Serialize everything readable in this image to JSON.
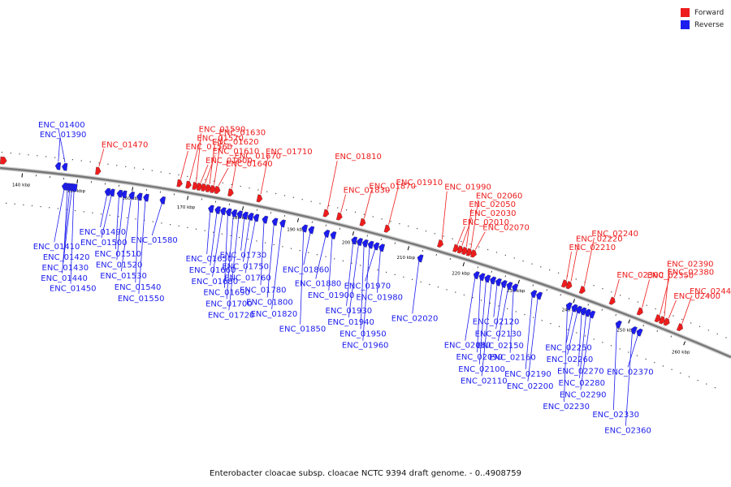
{
  "colors": {
    "forward": "#ee1c1c",
    "reverse": "#1c1cee",
    "backbone": "#777777",
    "tick": "#000000"
  },
  "legend": [
    {
      "name": "Forward",
      "color": "#ee1c1c"
    },
    {
      "name": "Reverse",
      "color": "#1c1cee"
    }
  ],
  "caption": "Enterobacter cloacae subsp. cloacae NCTC 9394 draft genome. - 0..4908759",
  "scale": {
    "unit": "kbp",
    "ticks": [
      {
        "kbp": 140,
        "label": "140 kbp"
      },
      {
        "kbp": 150,
        "label": "150 kbp"
      },
      {
        "kbp": 160,
        "label": "160 kbp"
      },
      {
        "kbp": 170,
        "label": "170 kbp"
      },
      {
        "kbp": 180,
        "label": "180 kbp"
      },
      {
        "kbp": 190,
        "label": "190 kbp"
      },
      {
        "kbp": 200,
        "label": "200 kbp"
      },
      {
        "kbp": 210,
        "label": "210 kbp"
      },
      {
        "kbp": 220,
        "label": "220 kbp"
      },
      {
        "kbp": 230,
        "label": "230 kbp"
      },
      {
        "kbp": 240,
        "label": "240 kbp"
      },
      {
        "kbp": 250,
        "label": "250 kbp"
      },
      {
        "kbp": 260,
        "label": "260 kbp"
      }
    ]
  },
  "forward_genes": [
    {
      "label": "ENC_01470",
      "kbp": 153.5
    },
    {
      "label": "ENC_01560",
      "kbp": 168.2
    },
    {
      "label": "ENC_01570",
      "kbp": 169.8
    },
    {
      "label": "ENC_01590",
      "kbp": 171.0
    },
    {
      "label": "ENC_01600",
      "kbp": 171.8
    },
    {
      "label": "ENC_01610",
      "kbp": 172.6
    },
    {
      "label": "ENC_01620",
      "kbp": 173.4
    },
    {
      "label": "ENC_01630",
      "kbp": 174.2
    },
    {
      "label": "ENC_01640",
      "kbp": 175.0
    },
    {
      "label": "ENC_01670",
      "kbp": 177.4
    },
    {
      "label": "ENC_01710",
      "kbp": 182.6
    },
    {
      "label": "ENC_01810",
      "kbp": 194.6
    },
    {
      "label": "ENC_01830",
      "kbp": 197.0
    },
    {
      "label": "ENC_01870",
      "kbp": 201.2
    },
    {
      "label": "ENC_01910",
      "kbp": 205.6
    },
    {
      "label": "ENC_01990",
      "kbp": 215.2
    },
    {
      "label": "ENC_02010",
      "kbp": 218.0
    },
    {
      "label": "ENC_02030",
      "kbp": 218.8
    },
    {
      "label": "ENC_02050",
      "kbp": 219.6
    },
    {
      "label": "ENC_02060",
      "kbp": 220.4
    },
    {
      "label": "ENC_02070",
      "kbp": 221.2
    },
    {
      "label": "ENC_02210",
      "kbp": 237.6
    },
    {
      "label": "ENC_02220",
      "kbp": 238.4
    },
    {
      "label": "ENC_02240",
      "kbp": 240.8
    },
    {
      "label": "ENC_02300",
      "kbp": 246.2
    },
    {
      "label": "ENC_02350",
      "kbp": 251.2
    },
    {
      "label": "ENC_02380",
      "kbp": 254.4
    },
    {
      "label": "ENC_02390",
      "kbp": 255.2
    },
    {
      "label": "ENC_02400",
      "kbp": 256.0
    },
    {
      "label": "ENC_02440",
      "kbp": 258.4
    }
  ],
  "reverse_genes": [
    {
      "label": "ENC_01390",
      "kbp": 146.2
    },
    {
      "label": "ENC_01400",
      "kbp": 147.4
    },
    {
      "label": "ENC_01410",
      "kbp": 147.8
    },
    {
      "label": "ENC_01420",
      "kbp": 148.4
    },
    {
      "label": "ENC_01430",
      "kbp": 148.8
    },
    {
      "label": "ENC_01440",
      "kbp": 149.2
    },
    {
      "label": "ENC_01450",
      "kbp": 149.6
    },
    {
      "label": "ENC_01490",
      "kbp": 155.6
    },
    {
      "label": "ENC_01500",
      "kbp": 156.4
    },
    {
      "label": "ENC_01510",
      "kbp": 157.8
    },
    {
      "label": "ENC_01520",
      "kbp": 158.6
    },
    {
      "label": "ENC_01530",
      "kbp": 160.0
    },
    {
      "label": "ENC_01540",
      "kbp": 161.4
    },
    {
      "label": "ENC_01550",
      "kbp": 162.6
    },
    {
      "label": "ENC_01580",
      "kbp": 165.6
    },
    {
      "label": "ENC_01650",
      "kbp": 174.4
    },
    {
      "label": "ENC_01660",
      "kbp": 175.6
    },
    {
      "label": "ENC_01680",
      "kbp": 176.6
    },
    {
      "label": "ENC_01690",
      "kbp": 177.6
    },
    {
      "label": "ENC_01700",
      "kbp": 178.6
    },
    {
      "label": "ENC_01720",
      "kbp": 179.6
    },
    {
      "label": "ENC_01730",
      "kbp": 180.6
    },
    {
      "label": "ENC_01750",
      "kbp": 181.6
    },
    {
      "label": "ENC_01760",
      "kbp": 182.6
    },
    {
      "label": "ENC_01780",
      "kbp": 184.2
    },
    {
      "label": "ENC_01800",
      "kbp": 186.0
    },
    {
      "label": "ENC_01820",
      "kbp": 187.4
    },
    {
      "label": "ENC_01850",
      "kbp": 191.4
    },
    {
      "label": "ENC_01860",
      "kbp": 192.6
    },
    {
      "label": "ENC_01880",
      "kbp": 195.4
    },
    {
      "label": "ENC_01900",
      "kbp": 196.6
    },
    {
      "label": "ENC_01930",
      "kbp": 200.4
    },
    {
      "label": "ENC_01940",
      "kbp": 201.4
    },
    {
      "label": "ENC_01950",
      "kbp": 202.4
    },
    {
      "label": "ENC_01960",
      "kbp": 203.4
    },
    {
      "label": "ENC_01970",
      "kbp": 204.4
    },
    {
      "label": "ENC_01980",
      "kbp": 205.4
    },
    {
      "label": "ENC_02020",
      "kbp": 212.4
    },
    {
      "label": "ENC_02080",
      "kbp": 222.6
    },
    {
      "label": "ENC_02090",
      "kbp": 223.6
    },
    {
      "label": "ENC_02100",
      "kbp": 224.6
    },
    {
      "label": "ENC_02110",
      "kbp": 225.6
    },
    {
      "label": "ENC_02120",
      "kbp": 226.6
    },
    {
      "label": "ENC_02130",
      "kbp": 227.6
    },
    {
      "label": "ENC_02150",
      "kbp": 228.6
    },
    {
      "label": "ENC_02160",
      "kbp": 229.6
    },
    {
      "label": "ENC_02190",
      "kbp": 233.0
    },
    {
      "label": "ENC_02200",
      "kbp": 234.0
    },
    {
      "label": "ENC_02230",
      "kbp": 239.4
    },
    {
      "label": "ENC_02250",
      "kbp": 240.4
    },
    {
      "label": "ENC_02260",
      "kbp": 241.2
    },
    {
      "label": "ENC_02270",
      "kbp": 242.0
    },
    {
      "label": "ENC_02280",
      "kbp": 242.8
    },
    {
      "label": "ENC_02290",
      "kbp": 243.6
    },
    {
      "label": "ENC_02330",
      "kbp": 248.4
    },
    {
      "label": "ENC_02360",
      "kbp": 251.2
    },
    {
      "label": "ENC_02370",
      "kbp": 252.2
    }
  ]
}
